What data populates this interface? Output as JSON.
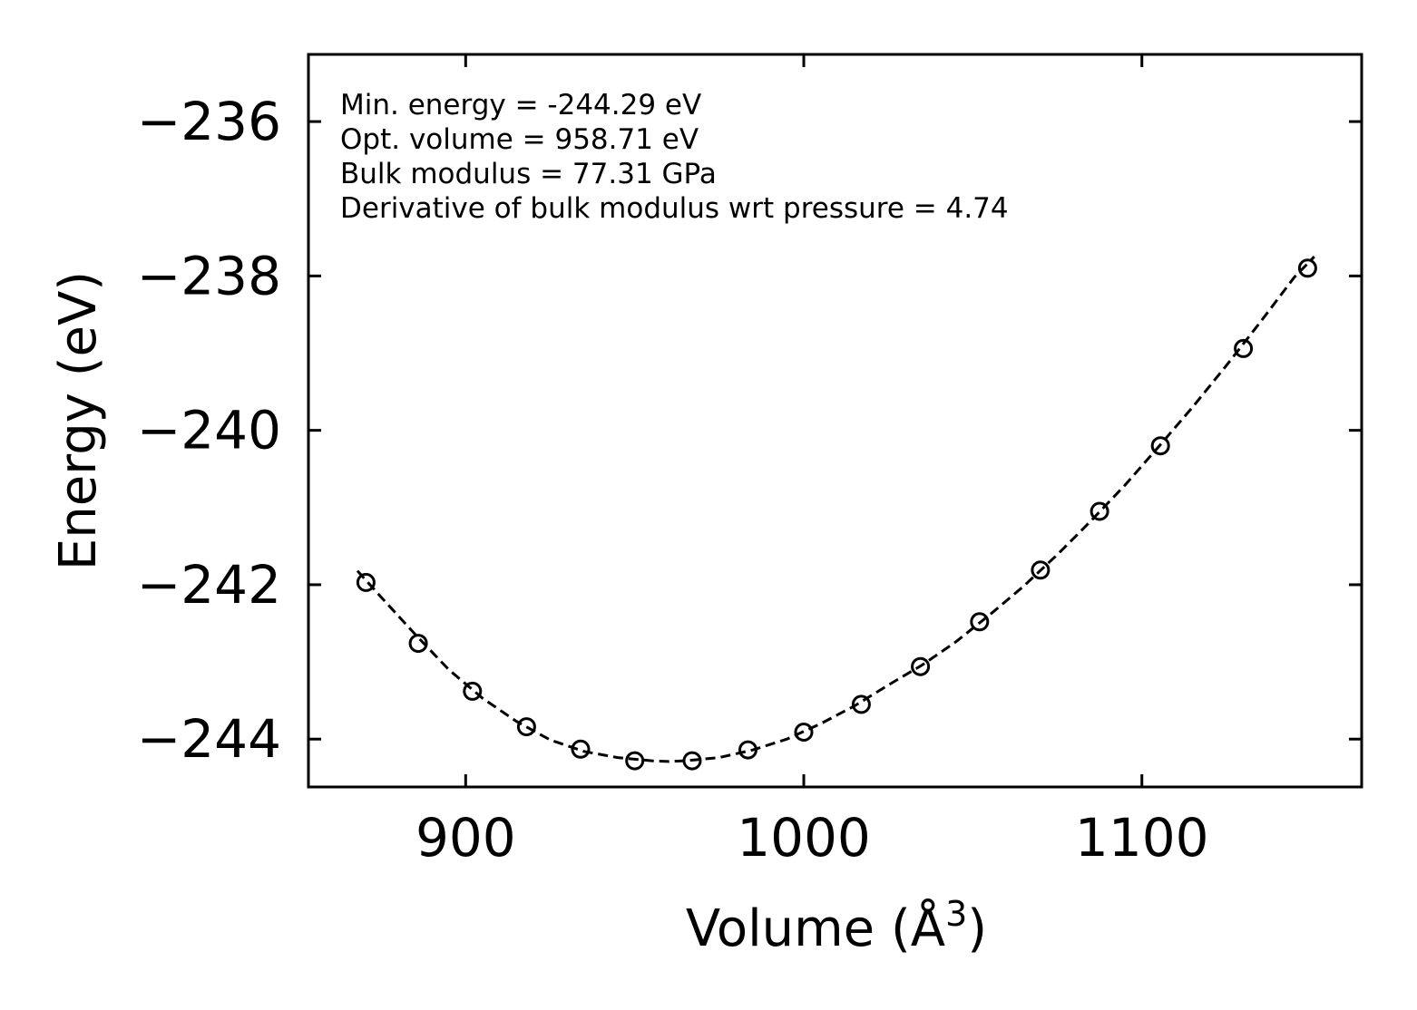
{
  "chart_data": {
    "type": "scatter",
    "title": "",
    "xlabel": "Volume (Å",
    "xlabel_sup": "3",
    "xlabel_close": ")",
    "ylabel": "Energy (eV)",
    "xlim": [
      853.5,
      1165
    ],
    "ylim": [
      -244.62,
      -235.13
    ],
    "xticks": [
      900,
      1000,
      1100
    ],
    "xtick_labels": [
      "900",
      "1000",
      "1100"
    ],
    "yticks": [
      -244,
      -242,
      -240,
      -238,
      -236
    ],
    "ytick_labels": [
      "−244",
      "−242",
      "−240",
      "−238",
      "−236"
    ],
    "grid": false,
    "annotations": [
      "Min. energy = -244.29 eV",
      "Opt. volume = 958.71 eV",
      "Bulk modulus = 77.31 GPa",
      "Derivative of bulk modulus wrt pressure = 4.74"
    ],
    "series": [
      {
        "name": "data",
        "style": "open-circle-markers",
        "color": "#000000",
        "x": [
          870.5,
          886,
          902,
          918,
          934,
          950,
          967,
          983.5,
          1000,
          1017,
          1034.5,
          1052,
          1070,
          1087.5,
          1105.5,
          1130,
          1149
        ],
        "y": [
          -241.97,
          -242.76,
          -243.38,
          -243.84,
          -244.13,
          -244.28,
          -244.28,
          -244.14,
          -243.91,
          -243.55,
          -243.06,
          -242.48,
          -241.81,
          -241.05,
          -240.2,
          -238.94,
          -237.9
        ]
      },
      {
        "name": "fit",
        "style": "dashed-line",
        "color": "#000000",
        "x": [
          868,
          875,
          885,
          895,
          905,
          915,
          925,
          935,
          945,
          955,
          960,
          965,
          975,
          985,
          995,
          1005,
          1015,
          1025,
          1035,
          1045,
          1055,
          1065,
          1075,
          1085,
          1095,
          1105,
          1115,
          1125,
          1135,
          1145,
          1151
        ],
        "y": [
          -241.82,
          -242.16,
          -242.64,
          -243.1,
          -243.47,
          -243.77,
          -244.01,
          -244.16,
          -244.24,
          -244.28,
          -244.29,
          -244.28,
          -244.24,
          -244.14,
          -244.0,
          -243.8,
          -243.57,
          -243.3,
          -243.04,
          -242.74,
          -242.39,
          -242.02,
          -241.61,
          -241.17,
          -240.71,
          -240.21,
          -239.7,
          -239.16,
          -238.6,
          -238.02,
          -237.75
        ]
      }
    ]
  }
}
